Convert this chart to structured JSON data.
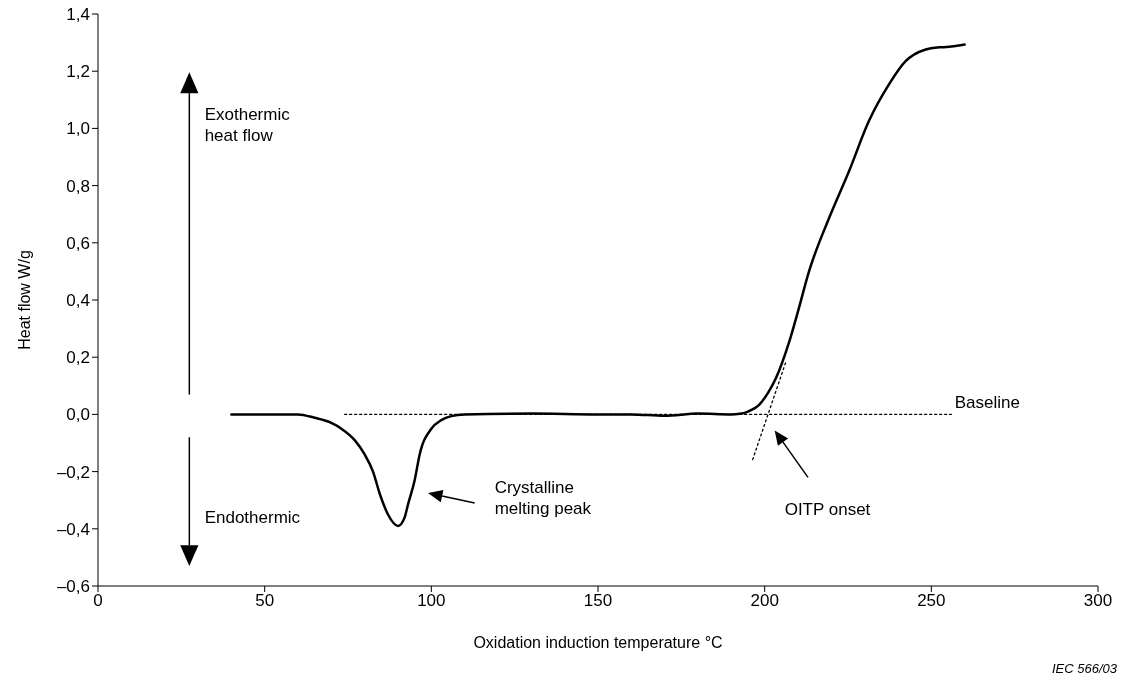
{
  "chart_data": {
    "type": "line",
    "xlabel": "Oxidation induction temperature   °C",
    "ylabel": "Heat flow   W/g",
    "xlim": [
      0,
      300
    ],
    "xticks": [
      0,
      50,
      100,
      150,
      200,
      250,
      300
    ],
    "ylim": [
      -0.6,
      1.4
    ],
    "yticks": [
      {
        "value": -0.6,
        "label": "–0,6"
      },
      {
        "value": -0.4,
        "label": "–0,4"
      },
      {
        "value": -0.2,
        "label": "–0,2"
      },
      {
        "value": 0,
        "label": "0,0"
      },
      {
        "value": 0.2,
        "label": "0,2"
      },
      {
        "value": 0.4,
        "label": "0,4"
      },
      {
        "value": 0.6,
        "label": "0,6"
      },
      {
        "value": 0.8,
        "label": "0,8"
      },
      {
        "value": 1.0,
        "label": "1,0"
      },
      {
        "value": 1.2,
        "label": "1,2"
      },
      {
        "value": 1.4,
        "label": "1,4"
      }
    ],
    "marker": "none",
    "line_style": "solid",
    "series": [
      {
        "color": "#000000",
        "x": [
          40,
          50,
          60,
          65,
          70,
          73,
          77,
          80,
          82.5,
          84.6,
          87,
          90,
          92,
          93,
          95,
          96.5,
          100,
          103,
          106,
          110,
          130,
          150,
          160,
          170,
          180,
          190,
          192.5,
          195,
          198.4,
          201,
          203.4,
          207.4,
          210,
          213.3,
          219.3,
          225.3,
          231.2,
          237.2,
          242.2,
          248.1,
          253.1,
          256,
          260
        ],
        "values": [
          0,
          0,
          0,
          -0.012,
          -0.03,
          -0.05,
          -0.09,
          -0.14,
          -0.2,
          -0.28,
          -0.35,
          -0.39,
          -0.36,
          -0.315,
          -0.23,
          -0.14,
          -0.05,
          -0.02,
          -0.006,
          0,
          0.003,
          0,
          0,
          -0.005,
          0.003,
          0,
          0.002,
          0.01,
          0.034,
          0.075,
          0.127,
          0.255,
          0.36,
          0.5,
          0.686,
          0.85,
          1.024,
          1.152,
          1.234,
          1.275,
          1.284,
          1.286,
          1.293
        ]
      },
      {
        "color": "#000000",
        "line_style": "dotted",
        "x": [
          74,
          256
        ],
        "values": [
          0,
          0
        ]
      },
      {
        "color": "#000000",
        "line_style": "dotted",
        "x": [
          196.4,
          206.4
        ],
        "values": [
          -0.158,
          0.185
        ]
      }
    ],
    "annotations": [
      "Exothermic\nheat flow",
      "Endothermic",
      "Crystalline\nmelting peak",
      "Baseline",
      "OITP onset",
      "IEC   566/03"
    ]
  }
}
